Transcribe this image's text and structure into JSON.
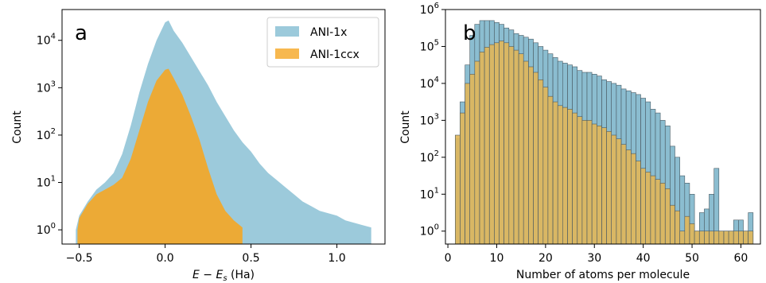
{
  "chart_data": [
    {
      "type": "area",
      "panel_label": "a",
      "xlabel": "E − E",
      "xlabel_sub": "s",
      "xlabel_unit": " (Ha)",
      "ylabel": "Count",
      "xlim": [
        -0.6,
        1.28
      ],
      "ylim_log10": [
        -0.3,
        4.65
      ],
      "yscale": "log",
      "xticks": [
        -0.5,
        0.0,
        0.5,
        1.0
      ],
      "xtick_labels": [
        "−0.5",
        "0.0",
        "0.5",
        "1.0"
      ],
      "yticks": [
        0,
        1,
        2,
        3,
        4
      ],
      "legend_position": "top-right",
      "grid": false,
      "series": [
        {
          "name": "ANI-1x",
          "color": "#9ccadb",
          "points": [
            [
              -0.52,
              0
            ],
            [
              -0.5,
              0.3
            ],
            [
              -0.45,
              0.6
            ],
            [
              -0.4,
              0.85
            ],
            [
              -0.35,
              1.0
            ],
            [
              -0.3,
              1.2
            ],
            [
              -0.25,
              1.6
            ],
            [
              -0.2,
              2.2
            ],
            [
              -0.15,
              2.9
            ],
            [
              -0.1,
              3.5
            ],
            [
              -0.05,
              4.0
            ],
            [
              0.0,
              4.38
            ],
            [
              0.02,
              4.42
            ],
            [
              0.05,
              4.2
            ],
            [
              0.1,
              3.95
            ],
            [
              0.15,
              3.65
            ],
            [
              0.2,
              3.35
            ],
            [
              0.25,
              3.05
            ],
            [
              0.3,
              2.7
            ],
            [
              0.35,
              2.4
            ],
            [
              0.4,
              2.1
            ],
            [
              0.45,
              1.85
            ],
            [
              0.5,
              1.65
            ],
            [
              0.55,
              1.4
            ],
            [
              0.6,
              1.2
            ],
            [
              0.65,
              1.05
            ],
            [
              0.7,
              0.9
            ],
            [
              0.75,
              0.75
            ],
            [
              0.8,
              0.6
            ],
            [
              0.85,
              0.5
            ],
            [
              0.9,
              0.4
            ],
            [
              0.95,
              0.35
            ],
            [
              1.0,
              0.3
            ],
            [
              1.05,
              0.2
            ],
            [
              1.1,
              0.15
            ],
            [
              1.15,
              0.1
            ],
            [
              1.2,
              0.05
            ]
          ]
        },
        {
          "name": "ANI-1ccx",
          "color": "#f5a623",
          "points": [
            [
              -0.51,
              0
            ],
            [
              -0.5,
              0.25
            ],
            [
              -0.45,
              0.55
            ],
            [
              -0.4,
              0.75
            ],
            [
              -0.35,
              0.85
            ],
            [
              -0.3,
              0.95
            ],
            [
              -0.25,
              1.1
            ],
            [
              -0.2,
              1.5
            ],
            [
              -0.15,
              2.1
            ],
            [
              -0.1,
              2.7
            ],
            [
              -0.05,
              3.15
            ],
            [
              0.0,
              3.38
            ],
            [
              0.02,
              3.4
            ],
            [
              0.05,
              3.2
            ],
            [
              0.1,
              2.85
            ],
            [
              0.15,
              2.4
            ],
            [
              0.2,
              1.9
            ],
            [
              0.25,
              1.3
            ],
            [
              0.3,
              0.75
            ],
            [
              0.35,
              0.4
            ],
            [
              0.4,
              0.2
            ],
            [
              0.45,
              0.05
            ]
          ]
        }
      ]
    },
    {
      "type": "bar",
      "panel_label": "b",
      "xlabel": "Number of atoms per molecule",
      "ylabel": "Count",
      "xlim": [
        -0.5,
        64
      ],
      "ylim_log10": [
        -0.35,
        6.0
      ],
      "yscale": "log",
      "xticks": [
        0,
        10,
        20,
        30,
        40,
        50,
        60
      ],
      "yticks": [
        0,
        1,
        2,
        3,
        4,
        5,
        6
      ],
      "grid": false,
      "bin_start": 2,
      "bin_width": 1,
      "series": [
        {
          "name": "ANI-1x",
          "color": "#8bbdd0",
          "log10_counts": [
            2.5,
            3.5,
            4.5,
            5.3,
            5.6,
            5.7,
            5.7,
            5.7,
            5.65,
            5.6,
            5.5,
            5.45,
            5.35,
            5.3,
            5.25,
            5.2,
            5.1,
            5.0,
            4.9,
            4.8,
            4.7,
            4.6,
            4.55,
            4.5,
            4.45,
            4.35,
            4.3,
            4.3,
            4.25,
            4.2,
            4.1,
            4.05,
            4.0,
            3.95,
            3.85,
            3.8,
            3.75,
            3.7,
            3.6,
            3.5,
            3.3,
            3.2,
            3.0,
            2.85,
            2.3,
            2.0,
            1.5,
            1.3,
            1.0,
            0.0,
            0.5,
            0.6,
            1.0,
            1.7,
            0.0,
            0.0,
            0.0,
            0.3,
            0.3,
            0.0,
            0.5
          ]
        },
        {
          "name": "ANI-1ccx",
          "color": "#e0b65a",
          "log10_counts": [
            2.6,
            3.2,
            4.0,
            4.25,
            4.6,
            4.85,
            4.98,
            5.05,
            5.1,
            5.15,
            5.1,
            5.0,
            4.9,
            4.8,
            4.6,
            4.45,
            4.3,
            4.1,
            3.9,
            3.65,
            3.5,
            3.4,
            3.35,
            3.3,
            3.2,
            3.1,
            3.0,
            3.0,
            2.9,
            2.85,
            2.8,
            2.7,
            2.6,
            2.5,
            2.35,
            2.2,
            2.1,
            1.9,
            1.7,
            1.6,
            1.5,
            1.4,
            1.3,
            1.15,
            0.7,
            0.55,
            0.0,
            0.4,
            0.2,
            0.0,
            0.0,
            0.0,
            0.0,
            0.0,
            0.0,
            0.0,
            0.0,
            0.0,
            0.0,
            0.0,
            0.0
          ]
        }
      ]
    }
  ]
}
